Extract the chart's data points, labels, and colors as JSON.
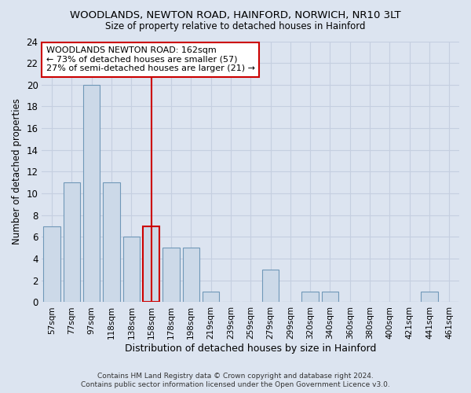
{
  "title1": "WOODLANDS, NEWTON ROAD, HAINFORD, NORWICH, NR10 3LT",
  "title2": "Size of property relative to detached houses in Hainford",
  "xlabel": "Distribution of detached houses by size in Hainford",
  "ylabel": "Number of detached properties",
  "footer1": "Contains HM Land Registry data © Crown copyright and database right 2024.",
  "footer2": "Contains public sector information licensed under the Open Government Licence v3.0.",
  "categories": [
    "57sqm",
    "77sqm",
    "97sqm",
    "118sqm",
    "138sqm",
    "158sqm",
    "178sqm",
    "198sqm",
    "219sqm",
    "239sqm",
    "259sqm",
    "279sqm",
    "299sqm",
    "320sqm",
    "340sqm",
    "360sqm",
    "380sqm",
    "400sqm",
    "421sqm",
    "441sqm",
    "461sqm"
  ],
  "values": [
    7,
    11,
    20,
    11,
    6,
    7,
    5,
    5,
    1,
    0,
    0,
    3,
    0,
    1,
    1,
    0,
    0,
    0,
    0,
    1,
    0
  ],
  "bar_color": "#ccd9e8",
  "bar_edge_color": "#7098b8",
  "highlight_index": 5,
  "highlight_bar_edge_color": "#cc0000",
  "vline_color": "#cc0000",
  "annotation_text": "WOODLANDS NEWTON ROAD: 162sqm\n← 73% of detached houses are smaller (57)\n27% of semi-detached houses are larger (21) →",
  "annotation_box_color": "#ffffff",
  "annotation_box_edge_color": "#cc0000",
  "ylim": [
    0,
    24
  ],
  "yticks": [
    0,
    2,
    4,
    6,
    8,
    10,
    12,
    14,
    16,
    18,
    20,
    22,
    24
  ],
  "grid_color": "#c5cfe0",
  "background_color": "#dce4f0"
}
